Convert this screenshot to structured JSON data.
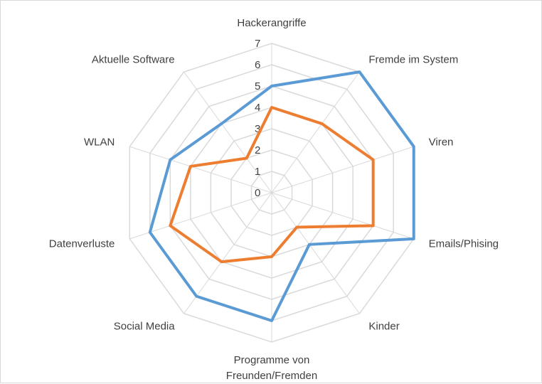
{
  "chart_data": {
    "type": "radar",
    "categories": [
      "Hackerangriffe",
      "Fremde im System",
      "Viren",
      "Emails/Phising",
      "Kinder",
      "Programme von Freunden/Fremden",
      "Social Media",
      "Datenverluste",
      "WLAN",
      "Aktuelle Software"
    ],
    "category_lines": [
      [
        "Hackerangriffe"
      ],
      [
        "Fremde im System"
      ],
      [
        "Viren"
      ],
      [
        "Emails/Phising"
      ],
      [
        "Kinder"
      ],
      [
        "Programme von",
        "Freunden/Fremden"
      ],
      [
        "Social Media"
      ],
      [
        "Datenverluste"
      ],
      [
        "WLAN"
      ],
      [
        "Aktuelle Software"
      ]
    ],
    "ticks": [
      "0",
      "1",
      "2",
      "3",
      "4",
      "5",
      "6",
      "7"
    ],
    "rmax": 7,
    "grid": true,
    "legend": "none",
    "series": [
      {
        "color": "#5b9bd5",
        "values": [
          5,
          7,
          7,
          7,
          3,
          6,
          6,
          6,
          5,
          4
        ]
      },
      {
        "color": "#ed7d31",
        "values": [
          4,
          4,
          5,
          5,
          2,
          3,
          4,
          5,
          4,
          2
        ]
      }
    ]
  }
}
